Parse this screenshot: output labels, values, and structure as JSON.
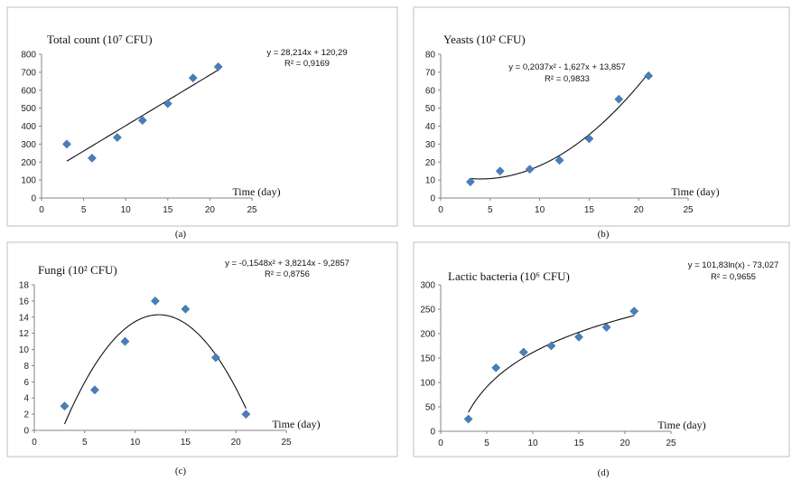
{
  "chart_data": [
    {
      "type": "scatter",
      "panel_label": "(a)",
      "title": "Total count (10⁷ CFU)",
      "xlabel": "Time (day)",
      "ylabel": "",
      "xlim": [
        0,
        25
      ],
      "ylim": [
        0,
        800
      ],
      "xticks": [
        0,
        5,
        10,
        15,
        20,
        25
      ],
      "yticks": [
        0,
        100,
        200,
        300,
        400,
        500,
        600,
        700,
        800
      ],
      "x": [
        3,
        6,
        9,
        12,
        15,
        18,
        21
      ],
      "y": [
        300,
        222,
        337,
        432,
        525,
        668,
        730
      ],
      "trendline": {
        "kind": "linear",
        "coef": [
          28.214,
          120.29
        ]
      },
      "equation": "y = 28,214x + 120,29",
      "r2": "R² = 0,9169",
      "color": "#4a7ebb"
    },
    {
      "type": "scatter",
      "panel_label": "(b)",
      "title": "Yeasts (10² CFU)",
      "xlabel": "Time (day)",
      "ylabel": "",
      "xlim": [
        0,
        25
      ],
      "ylim": [
        0,
        80
      ],
      "xticks": [
        0,
        5,
        10,
        15,
        20,
        25
      ],
      "yticks": [
        0,
        10,
        20,
        30,
        40,
        50,
        60,
        70,
        80
      ],
      "x": [
        3,
        6,
        9,
        12,
        15,
        18,
        21
      ],
      "y": [
        9,
        15,
        16,
        21,
        33,
        55,
        68
      ],
      "trendline": {
        "kind": "poly2",
        "coef": [
          0.2037,
          -1.627,
          13.857
        ]
      },
      "equation": "y = 0,2037x² - 1,627x + 13,857",
      "r2": "R² = 0,9833",
      "color": "#4a7ebb"
    },
    {
      "type": "scatter",
      "panel_label": "(c)",
      "title": "Fungi (10² CFU)",
      "xlabel": "Time (day)",
      "ylabel": "",
      "xlim": [
        0,
        25
      ],
      "ylim": [
        0,
        18
      ],
      "xticks": [
        0,
        5,
        10,
        15,
        20,
        25
      ],
      "yticks": [
        0,
        2,
        4,
        6,
        8,
        10,
        12,
        14,
        16,
        18
      ],
      "x": [
        3,
        6,
        9,
        12,
        15,
        18,
        21
      ],
      "y": [
        3,
        5,
        11,
        16,
        15,
        9,
        2
      ],
      "trendline": {
        "kind": "poly2",
        "coef": [
          -0.1548,
          3.8214,
          -9.2857
        ]
      },
      "equation": "y = -0,1548x² + 3,8214x - 9,2857",
      "r2": "R² = 0,8756",
      "color": "#4a7ebb"
    },
    {
      "type": "scatter",
      "panel_label": "(d)",
      "title": "Lactic bacteria (10⁶ CFU)",
      "xlabel": "Time (day)",
      "ylabel": "",
      "xlim": [
        0,
        25
      ],
      "ylim": [
        0,
        300
      ],
      "xticks": [
        0,
        5,
        10,
        15,
        20,
        25
      ],
      "yticks": [
        0,
        50,
        100,
        150,
        200,
        250,
        300
      ],
      "x": [
        3,
        6,
        9,
        12,
        15,
        18,
        21
      ],
      "y": [
        25,
        130,
        162,
        175,
        193,
        213,
        246
      ],
      "trendline": {
        "kind": "log",
        "coef": [
          101.83,
          -73.027
        ]
      },
      "equation": "y = 101,83ln(x) - 73,027",
      "r2": "R² = 0,9655",
      "color": "#4a7ebb"
    }
  ]
}
